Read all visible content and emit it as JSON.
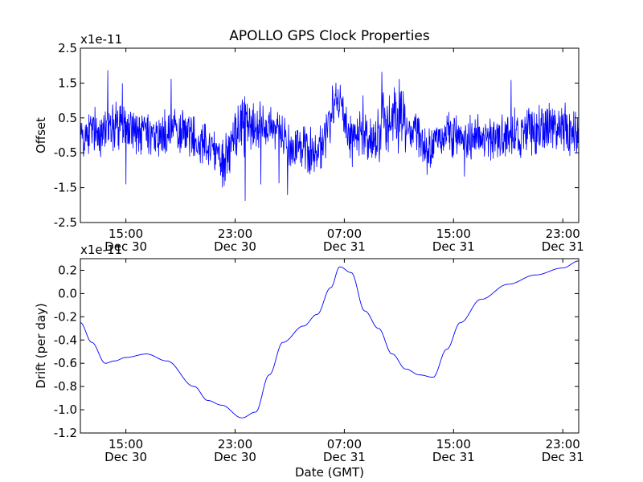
{
  "chart_data": [
    {
      "type": "line",
      "title": "APOLLO GPS Clock Properties",
      "xlabel": "",
      "ylabel": "Offset",
      "y_multiplier": "x1e-11",
      "xlim": [
        "Dec 30 11:40",
        "Jan 01 00:10"
      ],
      "ylim": [
        -2.5,
        2.5
      ],
      "x_ticks": [
        {
          "time": "15:00",
          "date": "Dec 30"
        },
        {
          "time": "23:00",
          "date": "Dec 30"
        },
        {
          "time": "07:00",
          "date": "Dec 31"
        },
        {
          "time": "15:00",
          "date": "Dec 31"
        },
        {
          "time": "23:00",
          "date": "Dec 31"
        }
      ],
      "y_ticks": [
        "2.5",
        "1.5",
        "0.5",
        "-0.5",
        "-1.5",
        "-2.5"
      ],
      "y_tick_values": [
        2.5,
        1.5,
        0.5,
        -0.5,
        -1.5,
        -2.5
      ],
      "grid": false,
      "series": [
        {
          "color": "#0000ff",
          "style": "noise",
          "x": [
            "Dec 30 11:40",
            "Dec 30 13:00",
            "Dec 30 14:00",
            "Dec 30 15:30",
            "Dec 30 17:00",
            "Dec 30 19:00",
            "Dec 30 21:00",
            "Dec 30 22:00",
            "Dec 30 23:30",
            "Dec 31 00:30",
            "Dec 31 02:00",
            "Dec 31 03:30",
            "Dec 31 05:00",
            "Dec 31 06:30",
            "Dec 31 07:30",
            "Dec 31 09:00",
            "Dec 31 10:00",
            "Dec 31 11:00",
            "Dec 31 12:00",
            "Dec 31 13:00",
            "Dec 31 14:00",
            "Dec 31 16:00",
            "Dec 31 18:00",
            "Dec 31 20:00",
            "Dec 31 22:00",
            "Jan 01 00:10"
          ],
          "y": [
            0.0,
            0.1,
            0.3,
            0.1,
            -0.1,
            0.1,
            -0.2,
            -0.7,
            0.3,
            0.2,
            0.2,
            -0.3,
            -0.5,
            0.9,
            0.0,
            0.0,
            0.4,
            0.5,
            0.2,
            -0.5,
            0.0,
            0.0,
            -0.1,
            0.1,
            0.3,
            0.0
          ],
          "envelope": [
            0.6,
            0.6,
            0.7,
            0.6,
            0.5,
            0.5,
            0.5,
            0.7,
            0.8,
            0.5,
            0.5,
            0.6,
            0.6,
            0.6,
            0.5,
            0.7,
            0.8,
            0.7,
            0.6,
            0.6,
            0.5,
            0.5,
            0.5,
            0.6,
            0.6,
            0.6
          ]
        }
      ]
    },
    {
      "type": "line",
      "title": "",
      "xlabel": "Date (GMT)",
      "ylabel": "Drift (per day)",
      "y_multiplier": "x1e-11",
      "xlim": [
        "Dec 30 11:40",
        "Jan 01 00:10"
      ],
      "ylim": [
        -1.2,
        0.3
      ],
      "x_ticks": [
        {
          "time": "15:00",
          "date": "Dec 30"
        },
        {
          "time": "23:00",
          "date": "Dec 30"
        },
        {
          "time": "07:00",
          "date": "Dec 31"
        },
        {
          "time": "15:00",
          "date": "Dec 31"
        },
        {
          "time": "23:00",
          "date": "Dec 31"
        }
      ],
      "y_ticks": [
        "0.2",
        "0.0",
        "-0.2",
        "-0.4",
        "-0.6",
        "-0.8",
        "-1.0",
        "-1.2"
      ],
      "y_tick_values": [
        0.2,
        0.0,
        -0.2,
        -0.4,
        -0.6,
        -0.8,
        -1.0,
        -1.2
      ],
      "grid": false,
      "series": [
        {
          "color": "#0000ff",
          "style": "smooth",
          "x": [
            "Dec 30 11:40",
            "Dec 30 12:30",
            "Dec 30 13:30",
            "Dec 30 14:10",
            "Dec 30 15:00",
            "Dec 30 16:30",
            "Dec 30 18:00",
            "Dec 30 20:00",
            "Dec 30 21:00",
            "Dec 30 22:00",
            "Dec 30 23:30",
            "Dec 31 00:30",
            "Dec 31 01:30",
            "Dec 31 02:30",
            "Dec 31 04:00",
            "Dec 31 05:00",
            "Dec 31 06:00",
            "Dec 31 06:40",
            "Dec 31 07:30",
            "Dec 31 08:30",
            "Dec 31 09:30",
            "Dec 31 10:30",
            "Dec 31 11:30",
            "Dec 31 12:30",
            "Dec 31 13:30",
            "Dec 31 14:30",
            "Dec 31 15:30",
            "Dec 31 17:00",
            "Dec 31 19:00",
            "Dec 31 21:00",
            "Dec 31 23:00",
            "Jan 01 00:10"
          ],
          "y": [
            -0.25,
            -0.42,
            -0.6,
            -0.58,
            -0.55,
            -0.52,
            -0.58,
            -0.8,
            -0.92,
            -0.96,
            -1.07,
            -1.02,
            -0.7,
            -0.42,
            -0.28,
            -0.18,
            0.05,
            0.23,
            0.18,
            -0.15,
            -0.3,
            -0.52,
            -0.65,
            -0.7,
            -0.72,
            -0.48,
            -0.25,
            -0.05,
            0.08,
            0.16,
            0.22,
            0.28
          ]
        }
      ]
    }
  ]
}
